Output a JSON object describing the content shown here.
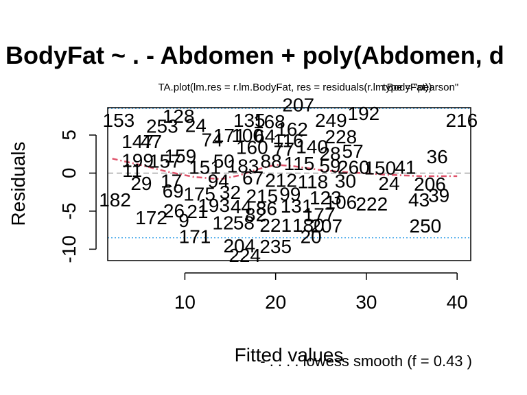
{
  "chart_data": {
    "type": "scatter",
    "title": "BodyFat ~ . - Abdomen + poly(Abdomen, d",
    "subtitle_main": "TA.plot(lm.res = r.lm.BodyFat, res = residuals(r.lm.BodyFat))",
    "subtitle_overlay": "type = \"pearson\"",
    "xlabel": "Fitted values",
    "ylabel": "Residuals",
    "xlim": [
      1.5,
      41.5
    ],
    "ylim": [
      -11.5,
      8.6
    ],
    "xticks": [
      10,
      20,
      30,
      40
    ],
    "yticks": [
      -10,
      -5,
      0,
      5
    ],
    "xtick_labels": [
      "10",
      "20",
      "30",
      "40"
    ],
    "ytick_labels": [
      "-10",
      "-5",
      "0",
      "5"
    ],
    "zero_line": 0,
    "reference_lines": [
      8.5,
      -8.5
    ],
    "footnote": "- . . . . lowess smooth (f = 0.43  )",
    "colors": {
      "points": "#000000",
      "smooth": "#DF536B",
      "reference": "#2297E6",
      "zero": "#9E9E9E",
      "frame": "#000000"
    },
    "points": [
      {
        "label": "153",
        "x": 2.7,
        "y": 7.0
      },
      {
        "label": "253",
        "x": 7.5,
        "y": 6.2
      },
      {
        "label": "128",
        "x": 9.3,
        "y": 7.5
      },
      {
        "label": "24",
        "x": 11.2,
        "y": 6.3
      },
      {
        "label": "147",
        "x": 4.8,
        "y": 4.2
      },
      {
        "label": "47",
        "x": 6.3,
        "y": 4.2
      },
      {
        "label": "159",
        "x": 9.5,
        "y": 2.3
      },
      {
        "label": "199",
        "x": 4.8,
        "y": 1.7
      },
      {
        "label": "157",
        "x": 7.8,
        "y": 1.6
      },
      {
        "label": "11",
        "x": 4.2,
        "y": 0.4
      },
      {
        "label": "29",
        "x": 5.2,
        "y": -1.3
      },
      {
        "label": "182",
        "x": 2.3,
        "y": -3.5
      },
      {
        "label": "17",
        "x": 8.5,
        "y": -1.0
      },
      {
        "label": "69",
        "x": 8.7,
        "y": -2.3
      },
      {
        "label": "172",
        "x": 6.3,
        "y": -5.8
      },
      {
        "label": "26",
        "x": 8.8,
        "y": -4.9
      },
      {
        "label": "21",
        "x": 11.4,
        "y": -5.0
      },
      {
        "label": "9",
        "x": 9.9,
        "y": -6.2
      },
      {
        "label": "171",
        "x": 11.1,
        "y": -8.3
      },
      {
        "label": "12",
        "x": 14.2,
        "y": -6.5
      },
      {
        "label": "58",
        "x": 16.5,
        "y": -6.5
      },
      {
        "label": "204",
        "x": 16.0,
        "y": -9.5
      },
      {
        "label": "224",
        "x": 16.6,
        "y": -10.8
      },
      {
        "label": "221",
        "x": 20.0,
        "y": -6.8
      },
      {
        "label": "235",
        "x": 20.0,
        "y": -9.6
      },
      {
        "label": "180",
        "x": 23.6,
        "y": -6.8
      },
      {
        "label": "207",
        "x": 25.6,
        "y": -6.9
      },
      {
        "label": "20",
        "x": 23.9,
        "y": -8.3
      },
      {
        "label": "207",
        "x": 22.5,
        "y": 9.0
      },
      {
        "label": "249",
        "x": 26.1,
        "y": 7.0
      },
      {
        "label": "192",
        "x": 29.7,
        "y": 7.9
      },
      {
        "label": "216",
        "x": 40.5,
        "y": 7.0
      },
      {
        "label": "228",
        "x": 27.2,
        "y": 4.8
      },
      {
        "label": "57",
        "x": 28.5,
        "y": 2.9
      },
      {
        "label": "36",
        "x": 37.8,
        "y": 2.2
      },
      {
        "label": "41",
        "x": 34.3,
        "y": 0.8
      },
      {
        "label": "24",
        "x": 32.5,
        "y": -1.3
      },
      {
        "label": "206",
        "x": 37.0,
        "y": -1.4
      },
      {
        "label": "43",
        "x": 35.8,
        "y": -3.5
      },
      {
        "label": "39",
        "x": 38.0,
        "y": -2.9
      },
      {
        "label": "222",
        "x": 30.6,
        "y": -4.0
      },
      {
        "label": "250",
        "x": 36.5,
        "y": -6.9
      },
      {
        "label": "135",
        "x": 17.1,
        "y": 7.0
      },
      {
        "label": "168",
        "x": 19.3,
        "y": 6.8
      },
      {
        "label": "162",
        "x": 21.8,
        "y": 5.8
      },
      {
        "label": "100",
        "x": 16.9,
        "y": 5.0
      },
      {
        "label": "64",
        "x": 18.8,
        "y": 4.9
      },
      {
        "label": "116",
        "x": 21.4,
        "y": 4.3
      },
      {
        "label": "74",
        "x": 13.0,
        "y": 4.4
      },
      {
        "label": "171",
        "x": 14.9,
        "y": 5.0
      },
      {
        "label": "160",
        "x": 17.4,
        "y": 3.4
      },
      {
        "label": "77",
        "x": 20.9,
        "y": 3.2
      },
      {
        "label": "140",
        "x": 24.0,
        "y": 3.5
      },
      {
        "label": "28",
        "x": 26.0,
        "y": 2.6
      },
      {
        "label": "50",
        "x": 14.3,
        "y": 1.6
      },
      {
        "label": "151",
        "x": 12.2,
        "y": 0.8
      },
      {
        "label": "183",
        "x": 16.4,
        "y": 1.0
      },
      {
        "label": "88",
        "x": 19.5,
        "y": 1.6
      },
      {
        "label": "115",
        "x": 22.6,
        "y": 1.3
      },
      {
        "label": "59",
        "x": 26.0,
        "y": 1.0
      },
      {
        "label": "260",
        "x": 28.6,
        "y": 0.8
      },
      {
        "label": "150",
        "x": 31.5,
        "y": 0.7
      },
      {
        "label": "94",
        "x": 13.7,
        "y": -1.0
      },
      {
        "label": "67",
        "x": 17.5,
        "y": -0.6
      },
      {
        "label": "212",
        "x": 20.6,
        "y": -0.9
      },
      {
        "label": "118",
        "x": 24.1,
        "y": -1.1
      },
      {
        "label": "30",
        "x": 27.7,
        "y": -1.0
      },
      {
        "label": "175",
        "x": 11.6,
        "y": -2.7
      },
      {
        "label": "32",
        "x": 15.0,
        "y": -2.5
      },
      {
        "label": "215",
        "x": 18.5,
        "y": -3.0
      },
      {
        "label": "99",
        "x": 21.6,
        "y": -2.7
      },
      {
        "label": "123",
        "x": 25.5,
        "y": -3.2
      },
      {
        "label": "193",
        "x": 13.2,
        "y": -4.2
      },
      {
        "label": "44",
        "x": 16.2,
        "y": -4.4
      },
      {
        "label": "86",
        "x": 19.0,
        "y": -4.6
      },
      {
        "label": "131",
        "x": 22.3,
        "y": -4.3
      },
      {
        "label": "106",
        "x": 27.2,
        "y": -3.8
      },
      {
        "label": "82",
        "x": 17.8,
        "y": -5.4
      },
      {
        "label": "177",
        "x": 24.8,
        "y": -5.4
      }
    ],
    "smooth": [
      {
        "x": 2.0,
        "y": 1.9
      },
      {
        "x": 5.0,
        "y": 1.1
      },
      {
        "x": 8.0,
        "y": 0.2
      },
      {
        "x": 11.0,
        "y": -0.5
      },
      {
        "x": 14.0,
        "y": -0.8
      },
      {
        "x": 16.0,
        "y": -0.3
      },
      {
        "x": 18.0,
        "y": 0.5
      },
      {
        "x": 20.0,
        "y": 1.1
      },
      {
        "x": 22.0,
        "y": 0.9
      },
      {
        "x": 25.0,
        "y": 0.4
      },
      {
        "x": 28.0,
        "y": 0.1
      },
      {
        "x": 32.0,
        "y": -0.2
      },
      {
        "x": 36.0,
        "y": -0.4
      },
      {
        "x": 40.0,
        "y": -0.4
      }
    ]
  }
}
